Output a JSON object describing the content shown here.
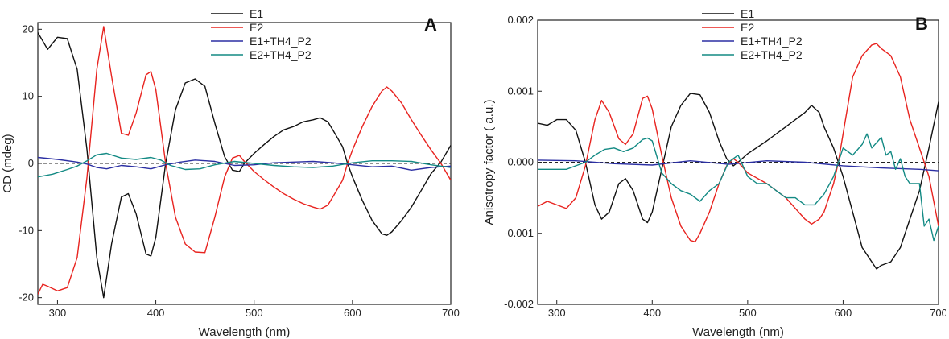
{
  "chart_data": [
    {
      "type": "line",
      "panel_label": "A",
      "xlabel": "Wavelength (nm)",
      "ylabel": "CD (mdeg)",
      "xlim": [
        280,
        700
      ],
      "ylim": [
        -21,
        21
      ],
      "xticks": [
        300,
        400,
        500,
        600,
        700
      ],
      "yticks": [
        -20,
        -10,
        0,
        10,
        20
      ],
      "zero_line": "dashed",
      "legend_position": "top-center",
      "colors": {
        "E1": "#111111",
        "E2": "#e8231f",
        "E1+TH4_P2": "#2b2fa3",
        "E2+TH4_P2": "#138a84"
      },
      "series": [
        {
          "name": "E1",
          "x": [
            280,
            290,
            300,
            310,
            320,
            330,
            340,
            347,
            355,
            365,
            372,
            380,
            390,
            395,
            400,
            410,
            420,
            430,
            440,
            450,
            460,
            470,
            478,
            485,
            490,
            500,
            510,
            520,
            530,
            540,
            550,
            560,
            567,
            575,
            580,
            590,
            595,
            600,
            610,
            620,
            630,
            635,
            640,
            650,
            660,
            670,
            680,
            690,
            700
          ],
          "y": [
            19.5,
            17,
            18.8,
            18.6,
            14,
            2,
            -14,
            -20,
            -12,
            -5,
            -4.5,
            -7.5,
            -13.5,
            -13.8,
            -11,
            0,
            8,
            12,
            12.6,
            11.5,
            6,
            1,
            -1,
            -1.2,
            0,
            1.5,
            2.8,
            4,
            5,
            5.5,
            6.2,
            6.5,
            6.8,
            6.2,
            5,
            2.5,
            0,
            -2,
            -5.5,
            -8.5,
            -10.5,
            -10.7,
            -10.2,
            -8.5,
            -6.5,
            -4,
            -1.5,
            0.2,
            2.7
          ]
        },
        {
          "name": "E2",
          "x": [
            280,
            285,
            290,
            300,
            310,
            320,
            330,
            340,
            347,
            355,
            365,
            372,
            380,
            390,
            395,
            400,
            410,
            420,
            430,
            440,
            450,
            460,
            470,
            478,
            485,
            490,
            500,
            510,
            520,
            530,
            540,
            550,
            560,
            567,
            575,
            580,
            590,
            595,
            600,
            610,
            620,
            630,
            635,
            640,
            650,
            660,
            670,
            680,
            690,
            700
          ],
          "y": [
            -19.5,
            -18,
            -18.3,
            -19,
            -18.5,
            -14,
            -2,
            14,
            20.4,
            13,
            4.5,
            4.2,
            7.5,
            13.2,
            13.7,
            11,
            0,
            -8,
            -12,
            -13.2,
            -13.3,
            -8,
            -2,
            0.8,
            1.2,
            0.3,
            -1.2,
            -2.4,
            -3.5,
            -4.5,
            -5.3,
            -6,
            -6.5,
            -6.8,
            -6.2,
            -5,
            -2.5,
            0,
            2,
            5.5,
            8.5,
            10.8,
            11.4,
            10.8,
            9,
            6.5,
            4.2,
            2,
            0,
            -2.5
          ]
        },
        {
          "name": "E1+TH4_P2",
          "x": [
            280,
            300,
            320,
            330,
            340,
            350,
            365,
            380,
            395,
            410,
            425,
            440,
            460,
            480,
            500,
            520,
            540,
            560,
            580,
            600,
            620,
            640,
            660,
            680,
            700
          ],
          "y": [
            0.9,
            0.6,
            0.2,
            -0.1,
            -0.6,
            -0.8,
            -0.3,
            -0.5,
            -0.8,
            -0.2,
            0.2,
            0.5,
            0.3,
            -0.3,
            -0.2,
            0.1,
            0.2,
            0.3,
            0.1,
            -0.2,
            -0.5,
            -0.4,
            -1,
            -0.6,
            -0.4
          ]
        },
        {
          "name": "E2+TH4_P2",
          "x": [
            280,
            295,
            310,
            320,
            330,
            340,
            350,
            365,
            380,
            395,
            405,
            415,
            430,
            445,
            460,
            480,
            500,
            520,
            540,
            560,
            580,
            600,
            620,
            640,
            660,
            680,
            700
          ],
          "y": [
            -2,
            -1.6,
            -0.9,
            -0.4,
            0.4,
            1.3,
            1.5,
            0.8,
            0.6,
            0.9,
            0.5,
            -0.3,
            -0.9,
            -0.8,
            -0.2,
            0.3,
            0,
            -0.3,
            -0.5,
            -0.6,
            -0.4,
            0.1,
            0.4,
            0.4,
            0.3,
            -0.2,
            -0.6
          ]
        }
      ]
    },
    {
      "type": "line",
      "panel_label": "B",
      "xlabel": "Wavelength (nm)",
      "ylabel": "Anisotropy factor ( a.u.)",
      "xlim": [
        280,
        700
      ],
      "ylim": [
        -0.002,
        0.002
      ],
      "xticks": [
        300,
        400,
        500,
        600,
        700
      ],
      "yticks": [
        -0.002,
        -0.001,
        0.0,
        0.001,
        0.002
      ],
      "ytick_labels": [
        "-0.002",
        "-0.001",
        "0.000",
        "0.001",
        "0.002"
      ],
      "zero_line": "dashed",
      "legend_position": "top-center",
      "colors": {
        "E1": "#111111",
        "E2": "#e8231f",
        "E1+TH4_P2": "#2b2fa3",
        "E2+TH4_P2": "#138a84"
      },
      "series": [
        {
          "name": "E1",
          "x": [
            280,
            290,
            300,
            310,
            320,
            330,
            340,
            347,
            355,
            365,
            372,
            380,
            390,
            395,
            400,
            410,
            420,
            430,
            440,
            450,
            460,
            470,
            478,
            485,
            490,
            500,
            520,
            540,
            560,
            567,
            575,
            580,
            590,
            595,
            600,
            610,
            620,
            630,
            635,
            640,
            650,
            660,
            670,
            680,
            690,
            700
          ],
          "y": [
            0.00055,
            0.00052,
            0.0006,
            0.0006,
            0.00045,
            0,
            -0.0006,
            -0.0008,
            -0.0007,
            -0.0003,
            -0.00023,
            -0.0004,
            -0.0008,
            -0.00085,
            -0.0007,
            -0.0001,
            0.0005,
            0.0008,
            0.00097,
            0.00095,
            0.0007,
            0.0003,
            5e-05,
            -5e-05,
            0,
            0.00012,
            0.0003,
            0.0005,
            0.0007,
            0.0008,
            0.0007,
            0.0005,
            0.0002,
            0,
            -0.0002,
            -0.0007,
            -0.0012,
            -0.0014,
            -0.0015,
            -0.00145,
            -0.0014,
            -0.0012,
            -0.0008,
            -0.0004,
            0.0002,
            0.00085
          ]
        },
        {
          "name": "E2",
          "x": [
            280,
            290,
            300,
            310,
            320,
            330,
            340,
            347,
            355,
            365,
            372,
            380,
            390,
            395,
            400,
            410,
            420,
            430,
            440,
            445,
            450,
            460,
            470,
            478,
            485,
            490,
            500,
            520,
            540,
            560,
            567,
            575,
            580,
            590,
            595,
            600,
            610,
            620,
            630,
            635,
            640,
            650,
            660,
            670,
            680,
            690,
            700
          ],
          "y": [
            -0.00062,
            -0.00055,
            -0.0006,
            -0.00065,
            -0.0005,
            -5e-05,
            0.0006,
            0.00087,
            0.0007,
            0.00033,
            0.00025,
            0.0004,
            0.0009,
            0.00093,
            0.00075,
            0.0001,
            -0.0005,
            -0.0009,
            -0.0011,
            -0.00112,
            -0.001,
            -0.0007,
            -0.0003,
            -5e-05,
            5e-05,
            0,
            -0.00015,
            -0.0003,
            -0.0005,
            -0.0008,
            -0.00087,
            -0.0008,
            -0.0007,
            -0.0003,
            0,
            0.0004,
            0.0012,
            0.0015,
            0.00165,
            0.00167,
            0.0016,
            0.0015,
            0.0012,
            0.0006,
            0.0002,
            -0.0002,
            -0.0009
          ]
        },
        {
          "name": "E1+TH4_P2",
          "x": [
            280,
            320,
            360,
            400,
            440,
            480,
            520,
            560,
            600,
            640,
            680,
            700
          ],
          "y": [
            3e-05,
            2e-05,
            -2e-05,
            -4e-05,
            2e-05,
            -3e-05,
            2e-05,
            0,
            -5e-05,
            -8e-05,
            -0.0001,
            -0.00012
          ]
        },
        {
          "name": "E2+TH4_P2",
          "x": [
            280,
            300,
            310,
            320,
            330,
            340,
            350,
            360,
            370,
            380,
            390,
            395,
            400,
            410,
            420,
            430,
            440,
            450,
            460,
            470,
            480,
            490,
            500,
            510,
            520,
            530,
            540,
            550,
            560,
            570,
            580,
            590,
            600,
            610,
            620,
            625,
            630,
            640,
            645,
            650,
            655,
            660,
            665,
            670,
            680,
            685,
            690,
            695,
            700
          ],
          "y": [
            -0.0001,
            -0.0001,
            -0.0001,
            -5e-05,
            0,
            0.0001,
            0.00018,
            0.0002,
            0.00015,
            0.0002,
            0.00032,
            0.00034,
            0.0003,
            -0.00015,
            -0.0003,
            -0.0004,
            -0.00045,
            -0.00055,
            -0.0004,
            -0.0003,
            0,
            0.0001,
            -0.0002,
            -0.0003,
            -0.0003,
            -0.0004,
            -0.0005,
            -0.0005,
            -0.0006,
            -0.0006,
            -0.00045,
            -0.0002,
            0.0002,
            0.0001,
            0.00025,
            0.0004,
            0.0002,
            0.00035,
            0.0001,
            0.00015,
            -0.0001,
            5e-05,
            -0.0002,
            -0.0003,
            -0.0003,
            -0.0009,
            -0.0008,
            -0.0011,
            -0.0009
          ]
        }
      ]
    }
  ]
}
